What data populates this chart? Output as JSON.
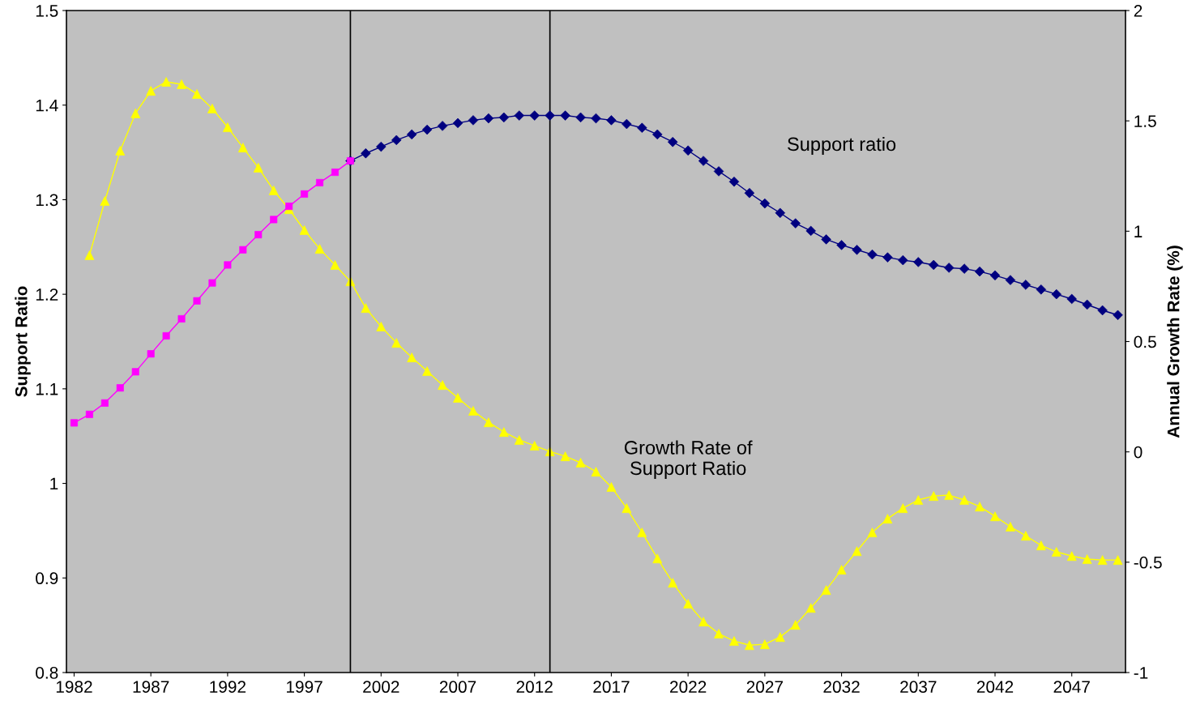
{
  "chart_data": {
    "type": "line",
    "ylabel": "Support Ratio",
    "y2label": "Annual Growth Rate (%)",
    "xlim": [
      1981.5,
      2050.5
    ],
    "xticks": [
      1982,
      1987,
      1992,
      1997,
      2002,
      2007,
      2012,
      2017,
      2022,
      2027,
      2032,
      2037,
      2042,
      2047
    ],
    "ylim": [
      0.8,
      1.5
    ],
    "yticks": [
      0.8,
      0.9,
      1,
      1.1,
      1.2,
      1.3,
      1.4,
      1.5
    ],
    "y2lim": [
      -1,
      2
    ],
    "y2ticks": [
      -1,
      -0.5,
      0,
      0.5,
      1,
      1.5,
      2
    ],
    "grid": false,
    "legend": false,
    "ref_lines": [
      {
        "axis": "x",
        "value": 2000,
        "color": "#000000"
      },
      {
        "axis": "x",
        "value": 2013,
        "color": "#000000"
      }
    ],
    "series": [
      {
        "color": "#ff00ff",
        "marker": "square",
        "x": [
          1982,
          1983,
          1984,
          1985,
          1986,
          1987,
          1988,
          1989,
          1990,
          1991,
          1992,
          1993,
          1994,
          1995,
          1996,
          1997,
          1998,
          1999,
          2000
        ],
        "values": [
          1.064,
          1.073,
          1.085,
          1.101,
          1.118,
          1.137,
          1.156,
          1.174,
          1.193,
          1.212,
          1.231,
          1.247,
          1.263,
          1.279,
          1.293,
          1.306,
          1.318,
          1.329,
          1.341
        ]
      },
      {
        "name": "Support ratio",
        "color": "#000080",
        "marker": "diamond",
        "x": [
          2000,
          2001,
          2002,
          2003,
          2004,
          2005,
          2006,
          2007,
          2008,
          2009,
          2010,
          2011,
          2012,
          2013,
          2014,
          2015,
          2016,
          2017,
          2018,
          2019,
          2020,
          2021,
          2022,
          2023,
          2024,
          2025,
          2026,
          2027,
          2028,
          2029,
          2030,
          2031,
          2032,
          2033,
          2034,
          2035,
          2036,
          2037,
          2038,
          2039,
          2040,
          2041,
          2042,
          2043,
          2044,
          2045,
          2046,
          2047,
          2048,
          2049,
          2050
        ],
        "values": [
          1.341,
          1.349,
          1.356,
          1.363,
          1.369,
          1.374,
          1.378,
          1.381,
          1.384,
          1.386,
          1.387,
          1.389,
          1.389,
          1.389,
          1.389,
          1.387,
          1.386,
          1.384,
          1.38,
          1.376,
          1.369,
          1.361,
          1.352,
          1.341,
          1.33,
          1.319,
          1.307,
          1.296,
          1.286,
          1.275,
          1.267,
          1.258,
          1.252,
          1.247,
          1.242,
          1.239,
          1.236,
          1.234,
          1.231,
          1.228,
          1.227,
          1.224,
          1.22,
          1.215,
          1.21,
          1.205,
          1.2,
          1.195,
          1.189,
          1.183,
          1.178
        ]
      },
      {
        "name": "Growth Rate of\nSupport Ratio",
        "color": "#ffff00",
        "marker": "triangle",
        "axis": "y2",
        "x": [
          1983,
          1984,
          1985,
          1986,
          1987,
          1988,
          1989,
          1990,
          1991,
          1992,
          1993,
          1994,
          1995,
          1996,
          1997,
          1998,
          1999,
          2000,
          2001,
          2002,
          2003,
          2004,
          2005,
          2006,
          2007,
          2008,
          2009,
          2010,
          2011,
          2012,
          2013,
          2014,
          2015,
          2016,
          2017,
          2018,
          2019,
          2020,
          2021,
          2022,
          2023,
          2024,
          2025,
          2026,
          2027,
          2028,
          2029,
          2030,
          2031,
          2032,
          2033,
          2034,
          2035,
          2036,
          2037,
          2038,
          2039,
          2040,
          2041,
          2042,
          2043,
          2044,
          2045,
          2046,
          2047,
          2048,
          2049,
          2050
        ],
        "values": [
          0.891,
          1.137,
          1.365,
          1.534,
          1.636,
          1.677,
          1.666,
          1.622,
          1.556,
          1.471,
          1.379,
          1.288,
          1.185,
          1.1,
          1.005,
          0.92,
          0.847,
          0.773,
          0.652,
          0.568,
          0.494,
          0.428,
          0.366,
          0.303,
          0.245,
          0.186,
          0.134,
          0.09,
          0.054,
          0.028,
          0.002,
          -0.02,
          -0.049,
          -0.09,
          -0.159,
          -0.255,
          -0.365,
          -0.483,
          -0.593,
          -0.688,
          -0.769,
          -0.824,
          -0.857,
          -0.876,
          -0.872,
          -0.839,
          -0.784,
          -0.707,
          -0.626,
          -0.534,
          -0.45,
          -0.365,
          -0.303,
          -0.255,
          -0.218,
          -0.2,
          -0.196,
          -0.218,
          -0.248,
          -0.292,
          -0.339,
          -0.38,
          -0.424,
          -0.453,
          -0.472,
          -0.486,
          -0.49,
          -0.49
        ]
      }
    ]
  }
}
